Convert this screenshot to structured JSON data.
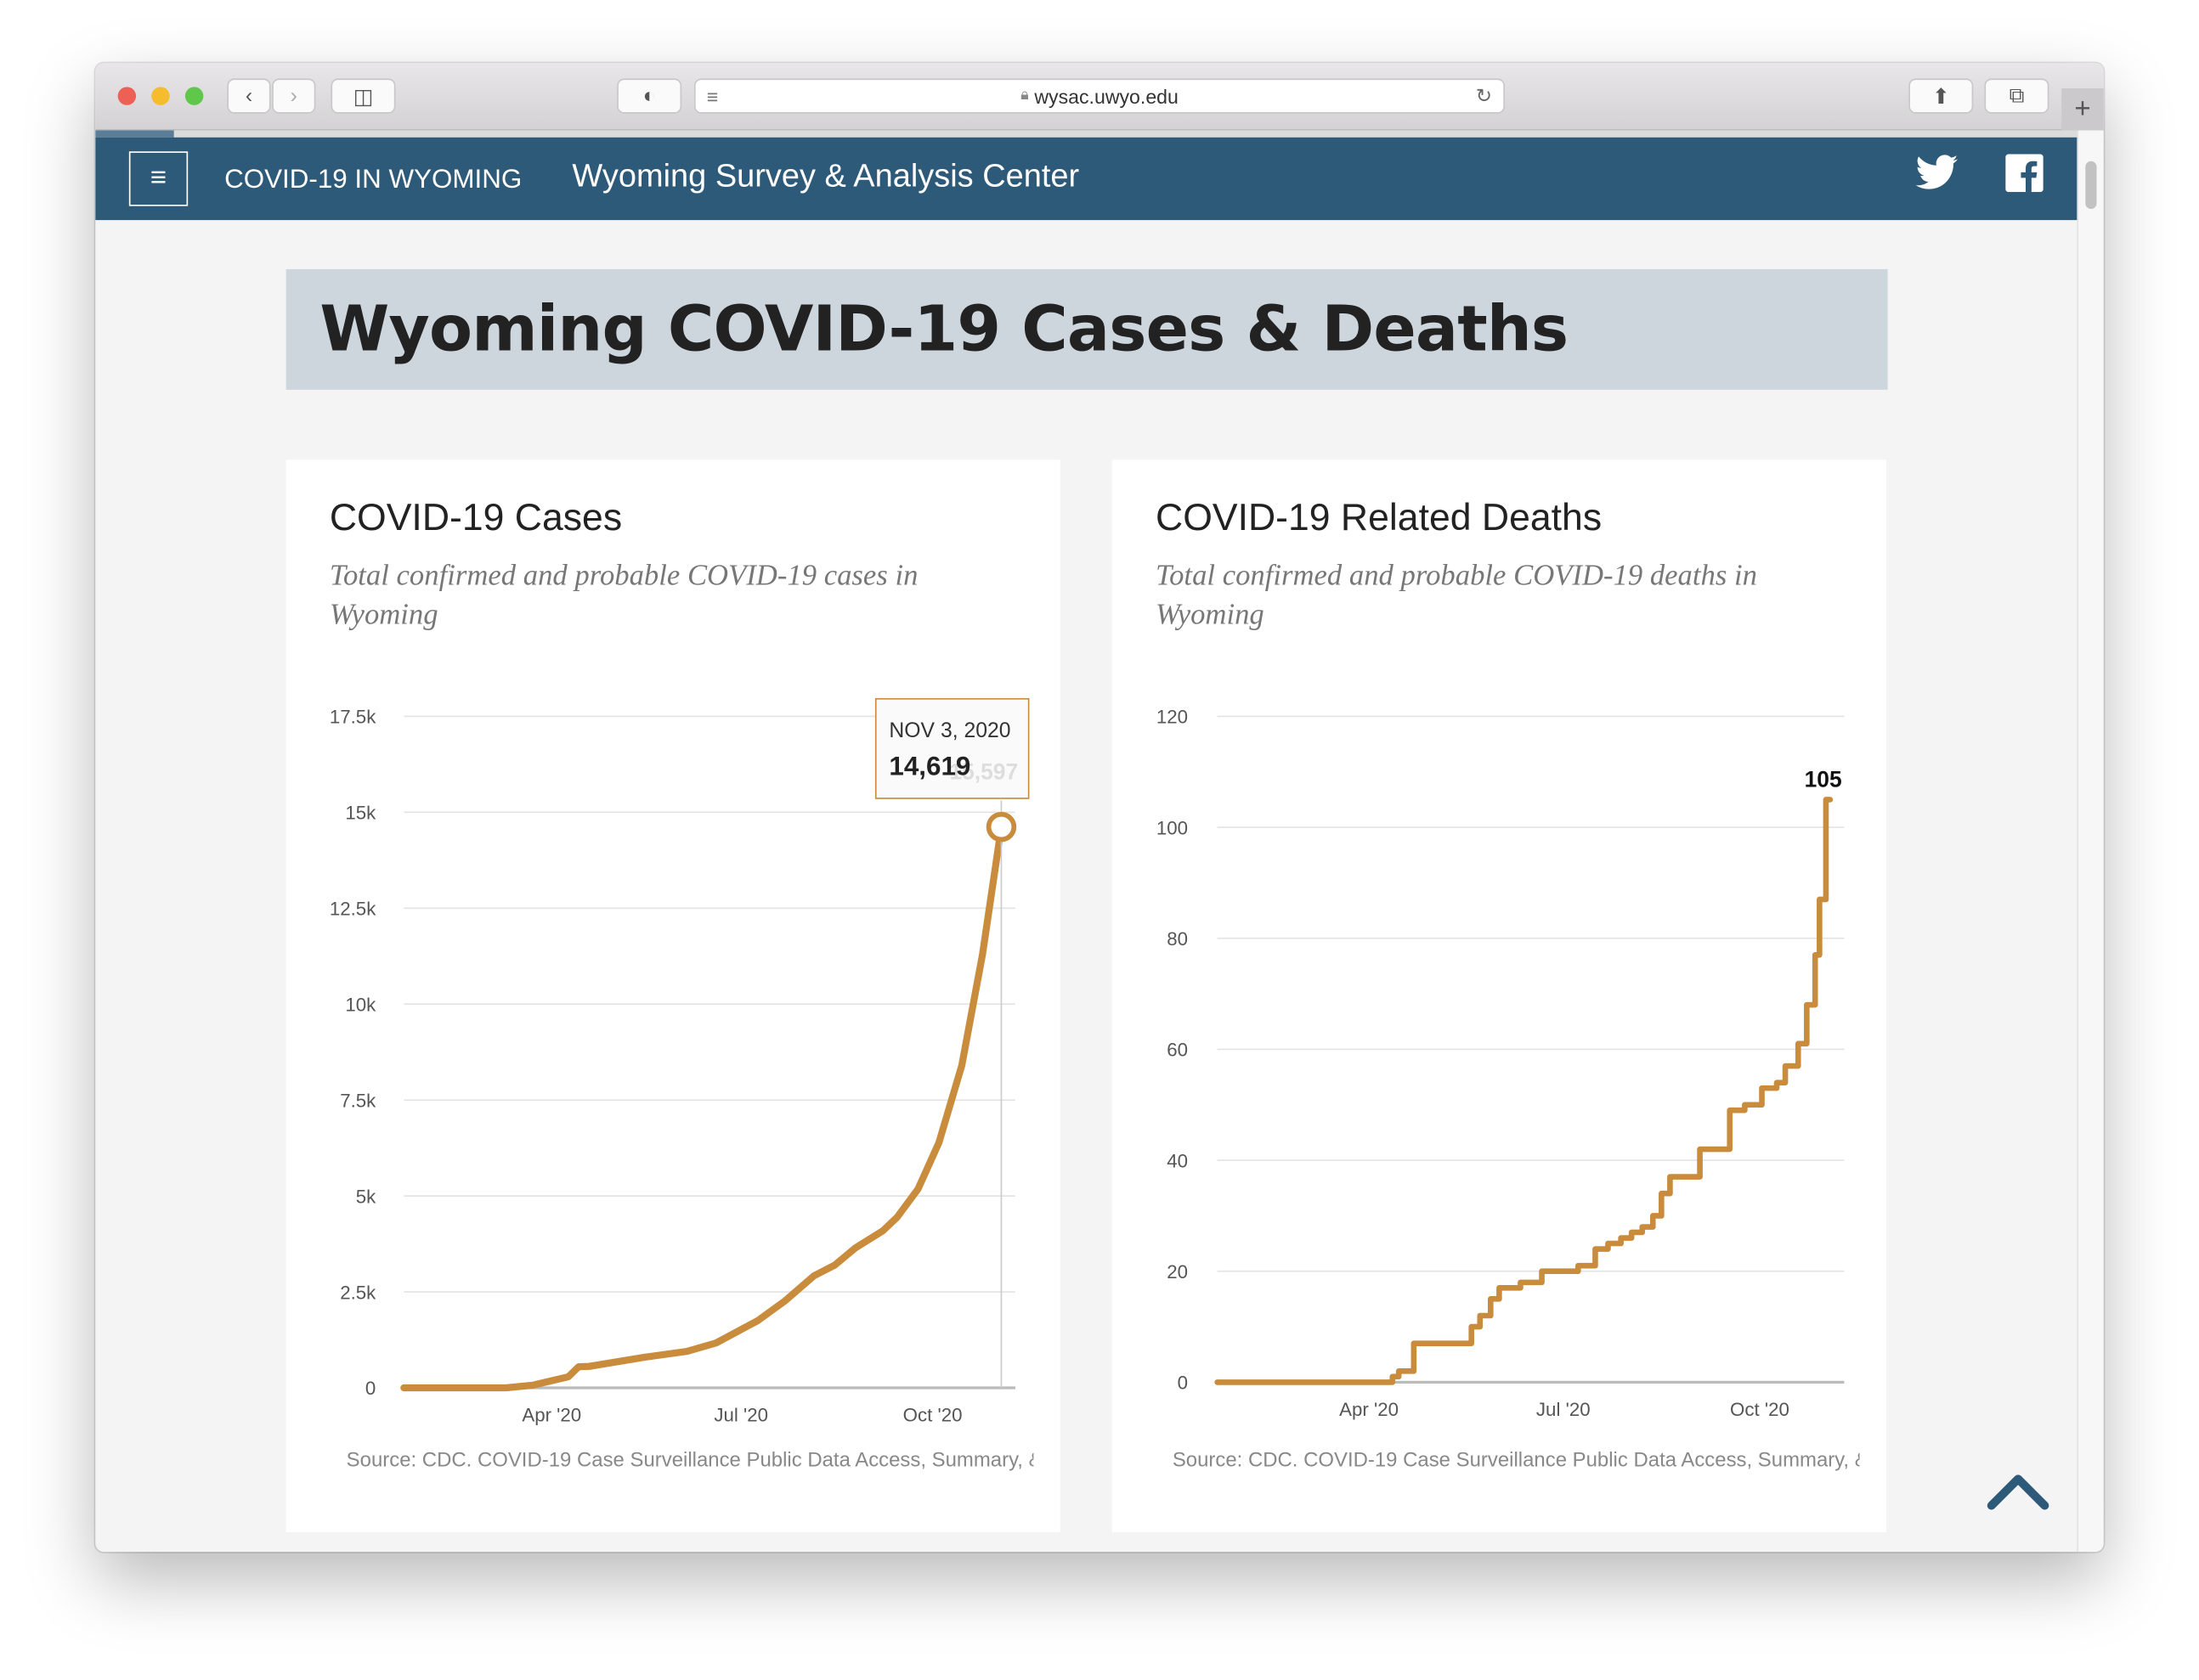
{
  "browser": {
    "url": "wysac.uwyo.edu"
  },
  "nav": {
    "brand": "COVID-19 IN WYOMING",
    "org": "Wyoming Survey & Analysis Center",
    "menu_icon": "hamburger-icon",
    "social": [
      "twitter-icon",
      "facebook-icon"
    ]
  },
  "page": {
    "title": "Wyoming COVID-19 Cases & Deaths"
  },
  "colors": {
    "nav": "#2e5a7a",
    "line": "#c98b3c",
    "banner": "#cdd5dd"
  },
  "cases": {
    "title": "COVID-19 Cases",
    "subtitle": "Total confirmed and probable COVID-19 cases in Wyoming",
    "source": "Source: CDC. COVID-19 Case Surveillance Public Data Access, Summary, &",
    "tooltip": {
      "date": "NOV 3, 2020",
      "value": "14,619",
      "ghost_value": "15,597"
    }
  },
  "deaths": {
    "title": "COVID-19 Related Deaths",
    "subtitle": "Total confirmed and probable COVID-19 deaths in Wyoming",
    "source": "Source: CDC. COVID-19 Case Surveillance Public Data Access, Summary, &",
    "end_label": "105"
  },
  "chart_data": [
    {
      "type": "line",
      "ylim": [
        0,
        17500
      ],
      "yticks": [
        "0",
        "2.5k",
        "5k",
        "7.5k",
        "10k",
        "12.5k",
        "15k",
        "17.5k"
      ],
      "ytick_values": [
        0,
        2500,
        5000,
        7500,
        10000,
        12500,
        15000,
        17500
      ],
      "xticks": [
        "Apr '20",
        "Jul '20",
        "Oct '20"
      ],
      "xtick_dates": [
        "2020-04-01",
        "2020-07-01",
        "2020-10-01"
      ],
      "xlim": [
        "2020-01-21",
        "2020-11-03"
      ],
      "grid": true,
      "x": [
        "2020-01-21",
        "2020-03-10",
        "2020-03-23",
        "2020-04-09",
        "2020-04-14",
        "2020-04-19",
        "2020-05-16",
        "2020-06-05",
        "2020-06-19",
        "2020-07-09",
        "2020-07-22",
        "2020-08-05",
        "2020-08-15",
        "2020-08-25",
        "2020-09-07",
        "2020-09-14",
        "2020-09-24",
        "2020-10-04",
        "2020-10-15",
        "2020-10-25",
        "2020-11-03"
      ],
      "y": [
        0,
        0,
        70,
        290,
        550,
        560,
        800,
        950,
        1170,
        1750,
        2260,
        2920,
        3200,
        3650,
        4090,
        4450,
        5180,
        6390,
        8400,
        11300,
        14619
      ]
    },
    {
      "type": "line",
      "step": true,
      "ylim": [
        0,
        120
      ],
      "yticks": [
        "0",
        "20",
        "40",
        "60",
        "80",
        "100",
        "120"
      ],
      "ytick_values": [
        0,
        20,
        40,
        60,
        80,
        100,
        120
      ],
      "xticks": [
        "Apr '20",
        "Jul '20",
        "Oct '20"
      ],
      "xtick_dates": [
        "2020-04-01",
        "2020-07-01",
        "2020-10-01"
      ],
      "xlim": [
        "2020-01-21",
        "2020-11-03"
      ],
      "grid": true,
      "x": [
        "2020-01-21",
        "2020-04-12",
        "2020-04-15",
        "2020-04-22",
        "2020-05-19",
        "2020-05-23",
        "2020-05-28",
        "2020-06-01",
        "2020-06-11",
        "2020-06-21",
        "2020-07-08",
        "2020-07-16",
        "2020-07-22",
        "2020-07-28",
        "2020-08-02",
        "2020-08-07",
        "2020-08-12",
        "2020-08-16",
        "2020-08-20",
        "2020-09-03",
        "2020-09-17",
        "2020-09-24",
        "2020-10-02",
        "2020-10-09",
        "2020-10-13",
        "2020-10-19",
        "2020-10-23",
        "2020-10-27",
        "2020-10-29",
        "2020-11-01",
        "2020-11-03"
      ],
      "y": [
        0,
        1,
        2,
        7,
        10,
        12,
        15,
        17,
        18,
        20,
        21,
        24,
        25,
        26,
        27,
        28,
        30,
        34,
        37,
        42,
        49,
        50,
        53,
        54,
        57,
        61,
        68,
        77,
        87,
        105,
        105
      ]
    }
  ]
}
